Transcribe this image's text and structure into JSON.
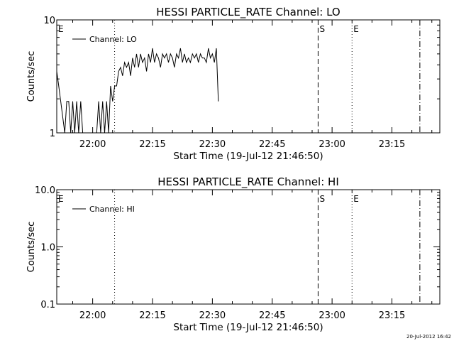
{
  "footer": {
    "timestamp": "20-Jul-2012 16:42"
  },
  "chart_data": [
    {
      "type": "line",
      "title": "HESSI PARTICLE_RATE Channel: LO",
      "xlabel": "Start Time (19-Jul-12 21:46:50)",
      "ylabel": "Counts/sec",
      "yscale": "log",
      "ylim": [
        1,
        10
      ],
      "xlim": [
        "21:51:00",
        "23:27:00"
      ],
      "x_ticks": [
        "22:00",
        "22:15",
        "22:30",
        "22:45",
        "23:00",
        "23:15"
      ],
      "y_tick_labels": [
        {
          "value": 10,
          "label": "10"
        },
        {
          "value": 1,
          "label": "1"
        }
      ],
      "legend": {
        "position": "top-left",
        "entries": [
          "Channel: LO"
        ]
      },
      "markers": [
        {
          "time": "21:51:00",
          "label": "E",
          "style": "none"
        },
        {
          "time": "22:05:30",
          "label": "",
          "style": "dotted"
        },
        {
          "time": "22:56:30",
          "label": "S",
          "style": "dashed"
        },
        {
          "time": "23:05:00",
          "label": "E",
          "style": "dotted"
        },
        {
          "time": "23:22:00",
          "label": "",
          "style": "dashdot"
        }
      ],
      "series": [
        {
          "name": "Channel: LO",
          "points": [
            [
              "21:51:00",
              3.5
            ],
            [
              "21:51:30",
              2.6
            ],
            [
              "21:52:00",
              1.9
            ],
            [
              "21:53:00",
              1.0
            ],
            [
              "21:53:30",
              1.9
            ],
            [
              "21:54:00",
              1.9
            ],
            [
              "21:54:30",
              1.0
            ],
            [
              "21:55:00",
              1.9
            ],
            [
              "21:55:30",
              1.0
            ],
            [
              "21:56:00",
              1.9
            ],
            [
              "21:56:30",
              1.0
            ],
            [
              "21:57:00",
              1.9
            ],
            [
              "21:57:30",
              1.0
            ],
            [
              "21:58:00",
              1.0
            ],
            [
              "21:58:30",
              1.0
            ],
            [
              "21:59:00",
              1.0
            ],
            [
              "21:59:30",
              1.0
            ],
            [
              "22:00:00",
              1.0
            ],
            [
              "22:01:00",
              1.0
            ],
            [
              "22:01:30",
              1.9
            ],
            [
              "22:02:00",
              1.0
            ],
            [
              "22:02:30",
              1.9
            ],
            [
              "22:03:00",
              1.0
            ],
            [
              "22:03:30",
              1.9
            ],
            [
              "22:04:00",
              1.0
            ],
            [
              "22:04:30",
              2.6
            ],
            [
              "22:05:00",
              1.9
            ],
            [
              "22:05:30",
              2.6
            ],
            [
              "22:06:00",
              2.6
            ],
            [
              "22:06:30",
              3.5
            ],
            [
              "22:07:00",
              3.8
            ],
            [
              "22:07:30",
              3.2
            ],
            [
              "22:08:00",
              4.2
            ],
            [
              "22:08:30",
              3.8
            ],
            [
              "22:09:00",
              4.2
            ],
            [
              "22:09:30",
              3.2
            ],
            [
              "22:10:00",
              4.6
            ],
            [
              "22:10:30",
              3.8
            ],
            [
              "22:11:00",
              5.0
            ],
            [
              "22:11:30",
              3.8
            ],
            [
              "22:12:00",
              5.0
            ],
            [
              "22:12:30",
              4.2
            ],
            [
              "22:13:00",
              4.6
            ],
            [
              "22:13:30",
              3.5
            ],
            [
              "22:14:00",
              5.0
            ],
            [
              "22:14:30",
              4.2
            ],
            [
              "22:15:00",
              5.6
            ],
            [
              "22:15:30",
              4.2
            ],
            [
              "22:16:00",
              5.0
            ],
            [
              "22:16:30",
              4.6
            ],
            [
              "22:17:00",
              3.8
            ],
            [
              "22:17:30",
              5.0
            ],
            [
              "22:18:00",
              4.6
            ],
            [
              "22:18:30",
              5.0
            ],
            [
              "22:19:00",
              4.2
            ],
            [
              "22:19:30",
              5.0
            ],
            [
              "22:20:00",
              4.6
            ],
            [
              "22:20:30",
              3.8
            ],
            [
              "22:21:00",
              5.0
            ],
            [
              "22:21:30",
              4.6
            ],
            [
              "22:22:00",
              5.6
            ],
            [
              "22:22:30",
              4.2
            ],
            [
              "22:23:00",
              5.0
            ],
            [
              "22:23:30",
              4.2
            ],
            [
              "22:24:00",
              4.6
            ],
            [
              "22:24:30",
              4.2
            ],
            [
              "22:25:00",
              5.0
            ],
            [
              "22:25:30",
              4.6
            ],
            [
              "22:26:00",
              5.0
            ],
            [
              "22:26:30",
              4.2
            ],
            [
              "22:27:00",
              5.0
            ],
            [
              "22:27:30",
              4.6
            ],
            [
              "22:28:00",
              4.6
            ],
            [
              "22:28:30",
              4.2
            ],
            [
              "22:29:00",
              5.6
            ],
            [
              "22:29:30",
              4.6
            ],
            [
              "22:30:00",
              5.0
            ],
            [
              "22:30:30",
              4.2
            ],
            [
              "22:31:00",
              5.6
            ],
            [
              "22:31:30",
              1.9
            ]
          ]
        }
      ]
    },
    {
      "type": "line",
      "title": "HESSI PARTICLE_RATE Channel: HI",
      "xlabel": "Start Time (19-Jul-12 21:46:50)",
      "ylabel": "Counts/sec",
      "yscale": "log",
      "ylim": [
        0.1,
        10
      ],
      "xlim": [
        "21:51:00",
        "23:27:00"
      ],
      "x_ticks": [
        "22:00",
        "22:15",
        "22:30",
        "22:45",
        "23:00",
        "23:15"
      ],
      "y_tick_labels": [
        {
          "value": 10,
          "label": "10.0"
        },
        {
          "value": 1,
          "label": "1.0"
        },
        {
          "value": 0.1,
          "label": "0.1"
        }
      ],
      "legend": {
        "position": "top-left",
        "entries": [
          "Channel: HI"
        ]
      },
      "markers": [
        {
          "time": "21:51:00",
          "label": "E",
          "style": "none"
        },
        {
          "time": "22:05:30",
          "label": "",
          "style": "dotted"
        },
        {
          "time": "22:56:30",
          "label": "S",
          "style": "dashed"
        },
        {
          "time": "23:05:00",
          "label": "E",
          "style": "dotted"
        },
        {
          "time": "23:22:00",
          "label": "",
          "style": "dashdot"
        }
      ],
      "series": [
        {
          "name": "Channel: HI",
          "points": []
        }
      ]
    }
  ]
}
